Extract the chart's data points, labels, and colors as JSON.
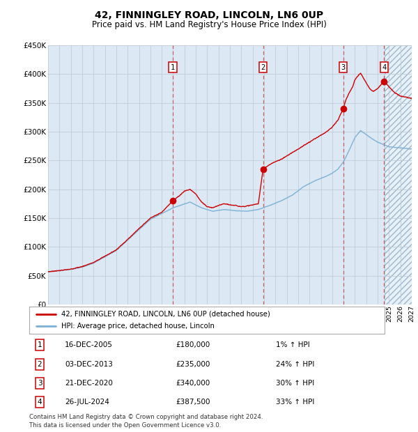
{
  "title": "42, FINNINGLEY ROAD, LINCOLN, LN6 0UP",
  "subtitle": "Price paid vs. HM Land Registry's House Price Index (HPI)",
  "title_fontsize": 10,
  "subtitle_fontsize": 8.5,
  "x_start_year": 1995,
  "x_end_year": 2027,
  "y_min": 0,
  "y_max": 450000,
  "y_ticks": [
    0,
    50000,
    100000,
    150000,
    200000,
    250000,
    300000,
    350000,
    400000,
    450000
  ],
  "y_tick_labels": [
    "£0",
    "£50K",
    "£100K",
    "£150K",
    "£200K",
    "£250K",
    "£300K",
    "£350K",
    "£400K",
    "£450K"
  ],
  "hpi_color": "#7bafd4",
  "price_color": "#cc0000",
  "dot_color": "#cc0000",
  "vline_color": "#cc4444",
  "bg_color": "#dce9f5",
  "grid_color": "#c0ccd8",
  "sale_dates_decimal": [
    2005.96,
    2013.92,
    2020.97,
    2024.57
  ],
  "sale_prices": [
    180000,
    235000,
    340000,
    387500
  ],
  "sale_labels": [
    "1",
    "2",
    "3",
    "4"
  ],
  "current_decimal": 2024.6,
  "legend_line1": "42, FINNINGLEY ROAD, LINCOLN, LN6 0UP (detached house)",
  "legend_line2": "HPI: Average price, detached house, Lincoln",
  "table_rows": [
    {
      "num": "1",
      "date": "16-DEC-2005",
      "price": "£180,000",
      "hpi": "1% ↑ HPI"
    },
    {
      "num": "2",
      "date": "03-DEC-2013",
      "price": "£235,000",
      "hpi": "24% ↑ HPI"
    },
    {
      "num": "3",
      "date": "21-DEC-2020",
      "price": "£340,000",
      "hpi": "30% ↑ HPI"
    },
    {
      "num": "4",
      "date": "26-JUL-2024",
      "price": "£387,500",
      "hpi": "33% ↑ HPI"
    }
  ],
  "footnote1": "Contains HM Land Registry data © Crown copyright and database right 2024.",
  "footnote2": "This data is licensed under the Open Government Licence v3.0."
}
